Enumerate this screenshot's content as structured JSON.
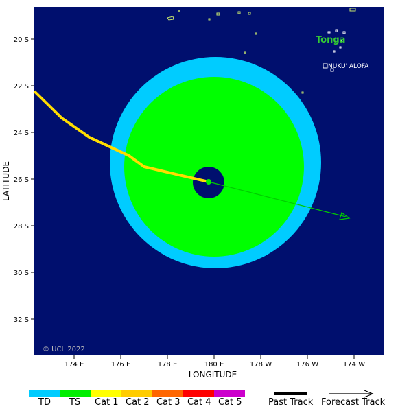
{
  "map": {
    "axis": {
      "xlabel": "LONGITUDE",
      "ylabel": "LATITUDE",
      "xticks": [
        "174 E",
        "176 E",
        "178 E",
        "180 E",
        "178 W",
        "176 W",
        "174 W"
      ],
      "yticks": [
        "20 S",
        "22 S",
        "24 S",
        "26 S",
        "28 S",
        "30 S",
        "32 S"
      ]
    },
    "places": {
      "country": "Tonga",
      "city": "NUKU' ALOFA"
    },
    "copyright": "© UCL 2022",
    "colors": {
      "ocean": "#000f6e",
      "land_outline": "#c8e66e",
      "gale_wind_zone": "#00ccff",
      "storm_wind_zone": "#00ff00",
      "eye": "#000f6e",
      "past_track": "#ffdd00",
      "forecast_track": "#00cc00",
      "country_label": "#33cc33"
    },
    "storm": {
      "center": "180 E, 26 S",
      "category_now": "TS"
    }
  },
  "legend": {
    "categories": [
      {
        "label": "TD",
        "color": "#00ccff"
      },
      {
        "label": "TS",
        "color": "#00ee00"
      },
      {
        "label": "Cat 1",
        "color": "#ffff00"
      },
      {
        "label": "Cat 2",
        "color": "#ffcc00"
      },
      {
        "label": "Cat 3",
        "color": "#ff6600"
      },
      {
        "label": "Cat 4",
        "color": "#ff0000"
      },
      {
        "label": "Cat 5",
        "color": "#cc00cc"
      }
    ],
    "past_track_label": "Past Track",
    "forecast_track_label": "Forecast Track"
  }
}
